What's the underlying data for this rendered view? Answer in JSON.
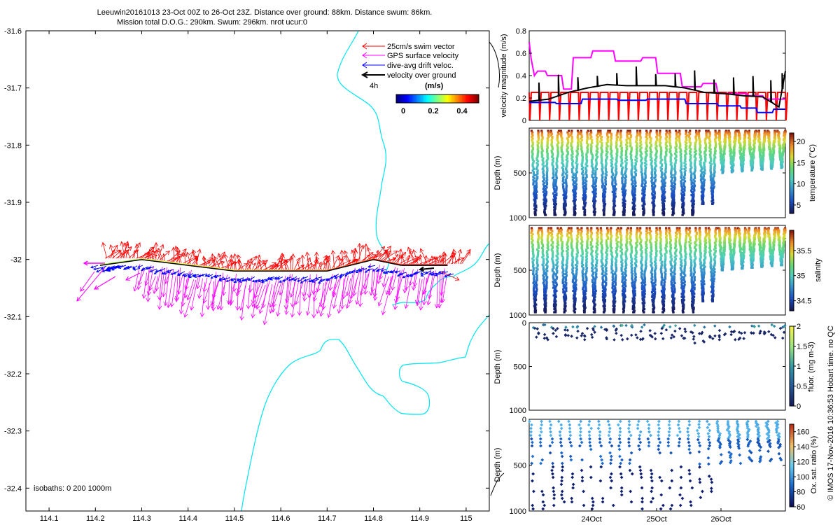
{
  "header": {
    "title_line1": "Leeuwin20161013 23-Oct 00Z to 26-Oct 23Z. Distance over ground: 88km. Distance swum: 86km.",
    "title_line2": "Mission total D.O.G.: 290km. Swum: 296km. nrot ucur:0"
  },
  "colors": {
    "swim": "#ff0000",
    "gps": "#ff00ff",
    "drift": "#0000ff",
    "ground": "#000000",
    "coast": "#00e5ee"
  },
  "chart_data": [
    {
      "type": "quiver-map",
      "xticks": [
        "114.1",
        "114.2",
        "114.3",
        "114.4",
        "114.5",
        "114.6",
        "114.7",
        "114.8",
        "114.9",
        "115"
      ],
      "yticks": [
        "-31.6",
        "-31.7",
        "-31.8",
        "-31.9",
        "-32",
        "-32.1",
        "-32.2",
        "-32.3",
        "-32.4"
      ],
      "xlim": [
        114.05,
        115.05
      ],
      "ylim": [
        -32.44,
        -31.6
      ],
      "legend": [
        {
          "label": "25cm/s swim vector",
          "color": "#ff0000"
        },
        {
          "label": "GPS surface velocity",
          "color": "#ff00ff"
        },
        {
          "label": "dive-avg drift veloc.",
          "color": "#0000ff"
        },
        {
          "label": "velocity over ground",
          "color": "#000000"
        }
      ],
      "scale_label": "4h",
      "colorbar": {
        "title": "(m/s)",
        "ticks": [
          "0",
          "0.2",
          "0.4"
        ],
        "range": [
          0,
          0.5
        ]
      },
      "isobaths_label": "isobaths: 0   200  1000m",
      "track_lon": [
        114.21,
        114.3,
        114.4,
        114.5,
        114.6,
        114.7,
        114.8,
        114.86,
        114.96
      ],
      "track_lat": [
        -32.01,
        -32.0,
        -32.01,
        -32.02,
        -32.02,
        -32.02,
        -32.0,
        -32.01,
        -32.01
      ]
    },
    {
      "type": "line",
      "ylabel": "velocity magnitude (m/s)",
      "ylim": [
        0,
        0.8
      ],
      "yticks": [
        "0",
        "0.2",
        "0.4",
        "0.6",
        "0.8"
      ],
      "xlim": [
        0,
        3.95
      ],
      "series": [
        {
          "name": "swim speed",
          "color": "#ff0000",
          "x": [
            0,
            3.95
          ],
          "y": [
            0.25,
            0.25
          ]
        },
        {
          "name": "GPS surface velocity",
          "color": "#ff00ff",
          "x": [
            0,
            0.03,
            0.08,
            0.13,
            0.25,
            0.28,
            0.5,
            0.53,
            0.65,
            0.68,
            0.95,
            0.98,
            1.3,
            1.33,
            1.72,
            1.75,
            1.95,
            1.98,
            2.33,
            2.36,
            2.65,
            2.68,
            2.88,
            2.91,
            3.35,
            3.38,
            3.6,
            3.63,
            3.95
          ],
          "y": [
            0.7,
            0.55,
            0.4,
            0.44,
            0.44,
            0.4,
            0.4,
            0.28,
            0.28,
            0.56,
            0.56,
            0.62,
            0.62,
            0.53,
            0.53,
            0.56,
            0.56,
            0.42,
            0.42,
            0.3,
            0.3,
            0.33,
            0.33,
            0.24,
            0.24,
            0.22,
            0.22,
            0.19,
            0.19
          ]
        },
        {
          "name": "dive-avg drift veloc.",
          "color": "#0000ff",
          "x": [
            0,
            0.4,
            0.42,
            0.8,
            0.82,
            1.35,
            1.37,
            1.8,
            1.82,
            2.4,
            2.42,
            2.9,
            2.92,
            3.25,
            3.27,
            3.5,
            3.52,
            3.75,
            3.77,
            3.95
          ],
          "y": [
            0.16,
            0.16,
            0.15,
            0.15,
            0.19,
            0.19,
            0.18,
            0.18,
            0.19,
            0.19,
            0.15,
            0.15,
            0.13,
            0.13,
            0.11,
            0.11,
            0.07,
            0.07,
            0.1,
            0.1
          ]
        },
        {
          "name": "velocity over ground",
          "color": "#000000",
          "x": [
            0,
            0.3,
            0.6,
            0.9,
            1.2,
            1.5,
            1.8,
            2.1,
            2.4,
            2.7,
            3.0,
            3.3,
            3.6,
            3.85,
            3.95
          ],
          "y": [
            0.17,
            0.19,
            0.25,
            0.29,
            0.32,
            0.31,
            0.31,
            0.31,
            0.29,
            0.25,
            0.24,
            0.22,
            0.21,
            0.12,
            0.44
          ]
        }
      ]
    },
    {
      "type": "scatter",
      "ylabel": "Depth (m)",
      "ylim": [
        0,
        1000
      ],
      "yticks": [
        "500",
        "1000"
      ],
      "colorbar": {
        "label": "temperature (°C)",
        "ticks": [
          "5",
          "10",
          "15",
          "20"
        ],
        "range": [
          3,
          22
        ]
      },
      "dives": 26,
      "max_depth": 1000,
      "value_range_surface": 21,
      "value_range_deep": 4
    },
    {
      "type": "scatter",
      "ylabel": "Depth (m)",
      "ylim": [
        0,
        1000
      ],
      "yticks": [
        "500",
        "1000"
      ],
      "colorbar": {
        "label": "salinity",
        "ticks": [
          "34.5",
          "35",
          "35.5"
        ],
        "range": [
          34.3,
          35.9
        ]
      },
      "dives": 26,
      "value_range_surface": 35.8,
      "value_range_deep": 34.4
    },
    {
      "type": "scatter",
      "ylabel": "Depth (m)",
      "ylim": [
        0,
        1000
      ],
      "yticks": [
        "0",
        "500",
        "1000"
      ],
      "colorbar": {
        "label": "fluor. (mg m-3)",
        "ticks": [
          "0",
          "0.5",
          "1",
          "1.5",
          "2"
        ],
        "range": [
          0,
          2
        ]
      },
      "dives": 26
    },
    {
      "type": "scatter",
      "ylabel": "Depth (m)",
      "ylim": [
        0,
        1000
      ],
      "yticks": [
        "0",
        "500",
        "1000"
      ],
      "xticks": [
        "24Oct",
        "25Oct",
        "26Oct"
      ],
      "colorbar": {
        "label": "Ox. sat. ratio (%)",
        "ticks": [
          "60",
          "80",
          "100",
          "120",
          "140",
          "160"
        ],
        "range": [
          60,
          170
        ]
      },
      "dives": 26
    }
  ],
  "footer": {
    "credit": "© IMOS 17-Nov-2016 10:36:53 Hobart time. no QC"
  }
}
